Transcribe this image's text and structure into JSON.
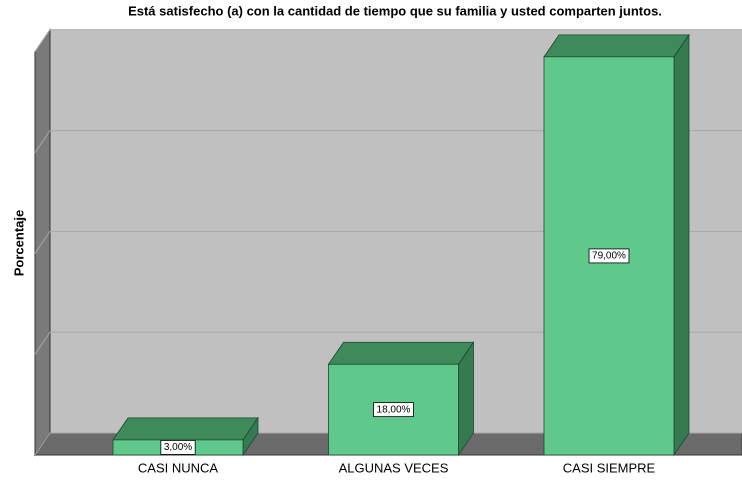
{
  "chart_data": {
    "type": "bar3d",
    "title": "Está satisfecho (a) con la cantidad de tiempo que su familia y usted comparten juntos.",
    "y_label": "Porcentaje",
    "categories": [
      "CASI NUNCA",
      "ALGUNAS VECES",
      "CASI SIEMPRE"
    ],
    "values": [
      3,
      18,
      79
    ],
    "value_labels": [
      "3,00%",
      "18,00%",
      "79,00%"
    ],
    "color": "#5ec98b",
    "ylim": [
      0,
      80
    ],
    "yticks": [
      0,
      20,
      40,
      60,
      80
    ],
    "grid": true
  }
}
